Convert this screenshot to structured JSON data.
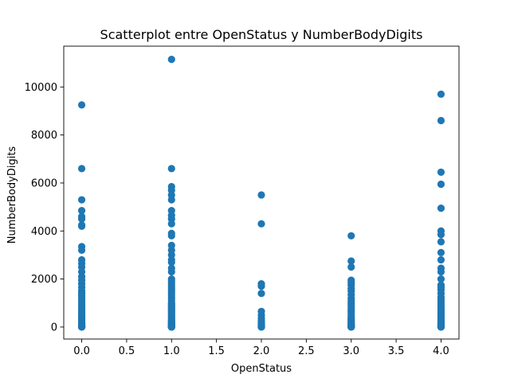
{
  "chart_data": {
    "type": "scatter",
    "title": "Scatterplot entre OpenStatus y NumberBodyDigits",
    "xlabel": "OpenStatus",
    "ylabel": "NumberBodyDigits",
    "xlim": [
      -0.2,
      4.2
    ],
    "ylim": [
      -500,
      11700
    ],
    "grid": false,
    "legend": "none",
    "point_color": "#1f77b4",
    "x_ticks": [
      0.0,
      0.5,
      1.0,
      1.5,
      2.0,
      2.5,
      3.0,
      3.5,
      4.0
    ],
    "x_tick_labels": [
      "0.0",
      "0.5",
      "1.0",
      "1.5",
      "2.0",
      "2.5",
      "3.0",
      "3.5",
      "4.0"
    ],
    "y_ticks": [
      0,
      2000,
      4000,
      6000,
      8000,
      10000
    ],
    "y_tick_labels": [
      "0",
      "2000",
      "4000",
      "6000",
      "8000",
      "10000"
    ],
    "series": [
      {
        "x": [
          0,
          0,
          0,
          0,
          0,
          0,
          0,
          0,
          0,
          0,
          0,
          0,
          0,
          0,
          0,
          0,
          0,
          0,
          0,
          0,
          0,
          0,
          0,
          0,
          0,
          0,
          0,
          0,
          0,
          0,
          0,
          0,
          0,
          0,
          0,
          0,
          0,
          0,
          0,
          0,
          0,
          0,
          0,
          0,
          0,
          0,
          0,
          0,
          0,
          0,
          1,
          1,
          1,
          1,
          1,
          1,
          1,
          1,
          1,
          1,
          1,
          1,
          1,
          1,
          1,
          1,
          1,
          1,
          1,
          1,
          1,
          1,
          1,
          1,
          1,
          1,
          1,
          1,
          1,
          1,
          1,
          1,
          1,
          1,
          1,
          1,
          1,
          1,
          1,
          1,
          1,
          1,
          1,
          1,
          1,
          1,
          1,
          1,
          1,
          1,
          1,
          1,
          1,
          1,
          1,
          1,
          1,
          1,
          1,
          1,
          1,
          1,
          1,
          1,
          1,
          2,
          2,
          2,
          2,
          2,
          2,
          2,
          2,
          2,
          2,
          2,
          2,
          2,
          2,
          2,
          2,
          2,
          2,
          2,
          2,
          2,
          3,
          3,
          3,
          3,
          3,
          3,
          3,
          3,
          3,
          3,
          3,
          3,
          3,
          3,
          3,
          3,
          3,
          3,
          3,
          3,
          3,
          3,
          3,
          3,
          3,
          3,
          3,
          3,
          3,
          3,
          3,
          3,
          3,
          3,
          3,
          3,
          3,
          4,
          4,
          4,
          4,
          4,
          4,
          4,
          4,
          4,
          4,
          4,
          4,
          4,
          4,
          4,
          4,
          4,
          4,
          4,
          4,
          4,
          4,
          4,
          4,
          4,
          4,
          4,
          4,
          4,
          4,
          4,
          4,
          4,
          4,
          4,
          4,
          4,
          4,
          4,
          4,
          4,
          4,
          4,
          4,
          4,
          4,
          4,
          4
        ],
        "y": [
          9250,
          6600,
          5300,
          4850,
          4600,
          4500,
          4250,
          4200,
          3350,
          3200,
          2800,
          2650,
          2500,
          2300,
          2100,
          1950,
          1800,
          1650,
          1500,
          1400,
          1300,
          1200,
          1100,
          1000,
          900,
          800,
          720,
          650,
          580,
          500,
          440,
          380,
          320,
          270,
          220,
          180,
          140,
          110,
          80,
          60,
          45,
          35,
          25,
          18,
          12,
          8,
          5,
          3,
          1,
          0,
          11150,
          6600,
          5850,
          5700,
          5500,
          5300,
          4850,
          4650,
          4500,
          4300,
          3900,
          3800,
          3400,
          3200,
          3000,
          2800,
          2700,
          2450,
          2300,
          2000,
          1900,
          1800,
          1700,
          1600,
          1500,
          1400,
          1300,
          1200,
          1100,
          1000,
          950,
          900,
          850,
          800,
          750,
          700,
          650,
          600,
          550,
          500,
          450,
          400,
          350,
          300,
          260,
          220,
          190,
          160,
          130,
          100,
          80,
          60,
          45,
          35,
          25,
          18,
          12,
          8,
          5,
          3,
          2,
          1,
          0,
          0,
          0,
          5500,
          4300,
          1800,
          1700,
          1400,
          650,
          500,
          380,
          280,
          200,
          150,
          110,
          80,
          55,
          35,
          20,
          12,
          6,
          3,
          1,
          0,
          3800,
          2750,
          2500,
          1950,
          1850,
          1750,
          1600,
          1500,
          1350,
          1200,
          1100,
          1000,
          900,
          800,
          720,
          650,
          580,
          500,
          430,
          370,
          310,
          260,
          210,
          170,
          130,
          100,
          75,
          55,
          40,
          28,
          18,
          11,
          6,
          3,
          1,
          0,
          0,
          9700,
          8600,
          6450,
          5950,
          4950,
          4000,
          3850,
          3550,
          3100,
          2800,
          2450,
          2300,
          2000,
          1750,
          1650,
          1550,
          1400,
          1250,
          1150,
          1050,
          950,
          850,
          780,
          700,
          630,
          560,
          500,
          440,
          380,
          330,
          280,
          240,
          200,
          160,
          130,
          100,
          80,
          60,
          45,
          33,
          24,
          16,
          10,
          6,
          3,
          1,
          0,
          0
        ]
      }
    ]
  }
}
